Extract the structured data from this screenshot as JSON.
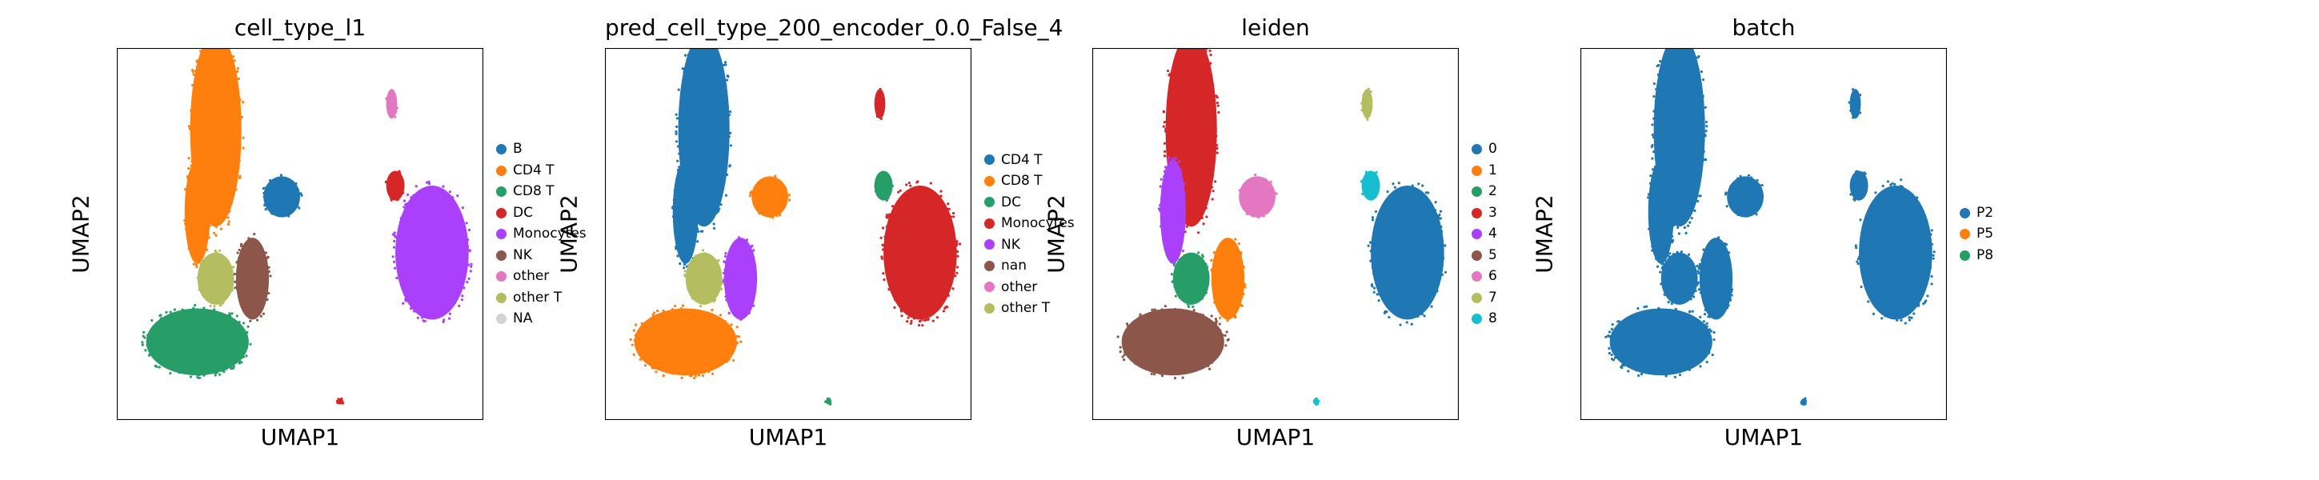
{
  "chart_data": [
    {
      "type": "scatter",
      "title": "cell_type_l1",
      "xlabel": "UMAP1",
      "ylabel": "UMAP2",
      "legend": [
        {
          "label": "B",
          "color": "#1f77b4"
        },
        {
          "label": "CD4 T",
          "color": "#ff7f0e"
        },
        {
          "label": "CD8 T",
          "color": "#279e68"
        },
        {
          "label": "DC",
          "color": "#d62728"
        },
        {
          "label": "Monocytes",
          "color": "#aa40fc"
        },
        {
          "label": "NK",
          "color": "#8c564b"
        },
        {
          "label": "other",
          "color": "#e377c2"
        },
        {
          "label": "other T",
          "color": "#b5bd61"
        },
        {
          "label": "NA",
          "color": "#d3d3d3"
        }
      ],
      "clusters": [
        {
          "name": "upper-stem",
          "category": "CD4 T",
          "x": 0.27,
          "y": 0.22,
          "w": 0.07,
          "h": 0.26
        },
        {
          "name": "mid-stem",
          "category": "CD4 T",
          "x": 0.22,
          "y": 0.44,
          "w": 0.035,
          "h": 0.14
        },
        {
          "name": "junction",
          "category": "other T",
          "x": 0.27,
          "y": 0.62,
          "w": 0.05,
          "h": 0.07
        },
        {
          "name": "lower-left",
          "category": "CD8 T",
          "x": 0.22,
          "y": 0.79,
          "w": 0.14,
          "h": 0.09
        },
        {
          "name": "nk-blob",
          "category": "NK",
          "x": 0.37,
          "y": 0.62,
          "w": 0.045,
          "h": 0.11
        },
        {
          "name": "b-island",
          "category": "B",
          "x": 0.45,
          "y": 0.4,
          "w": 0.05,
          "h": 0.055
        },
        {
          "name": "top-right",
          "category": "other",
          "x": 0.75,
          "y": 0.15,
          "w": 0.015,
          "h": 0.04
        },
        {
          "name": "dc-tip",
          "category": "DC",
          "x": 0.76,
          "y": 0.37,
          "w": 0.025,
          "h": 0.04
        },
        {
          "name": "mono-blob",
          "category": "Monocytes",
          "x": 0.86,
          "y": 0.55,
          "w": 0.1,
          "h": 0.18
        },
        {
          "name": "dc-speck",
          "category": "DC",
          "x": 0.61,
          "y": 0.95,
          "w": 0.008,
          "h": 0.008
        }
      ]
    },
    {
      "type": "scatter",
      "title": "pred_cell_type_200_encoder_0.0_False_4",
      "xlabel": "UMAP1",
      "ylabel": "UMAP2",
      "legend": [
        {
          "label": "CD4 T",
          "color": "#1f77b4"
        },
        {
          "label": "CD8 T",
          "color": "#ff7f0e"
        },
        {
          "label": "DC",
          "color": "#279e68"
        },
        {
          "label": "Monocytes",
          "color": "#d62728"
        },
        {
          "label": "NK",
          "color": "#aa40fc"
        },
        {
          "label": "nan",
          "color": "#8c564b"
        },
        {
          "label": "other",
          "color": "#e377c2"
        },
        {
          "label": "other T",
          "color": "#b5bd61"
        }
      ],
      "clusters": [
        {
          "name": "upper-stem",
          "category": "CD4 T",
          "x": 0.27,
          "y": 0.22,
          "w": 0.07,
          "h": 0.26
        },
        {
          "name": "mid-stem",
          "category": "CD4 T",
          "x": 0.22,
          "y": 0.44,
          "w": 0.035,
          "h": 0.14
        },
        {
          "name": "junction",
          "category": "other T",
          "x": 0.27,
          "y": 0.62,
          "w": 0.05,
          "h": 0.07
        },
        {
          "name": "lower-left",
          "category": "CD8 T",
          "x": 0.22,
          "y": 0.79,
          "w": 0.14,
          "h": 0.09
        },
        {
          "name": "nk-blob",
          "category": "NK",
          "x": 0.37,
          "y": 0.62,
          "w": 0.045,
          "h": 0.11
        },
        {
          "name": "b-island",
          "category": "CD8 T",
          "x": 0.45,
          "y": 0.4,
          "w": 0.05,
          "h": 0.055
        },
        {
          "name": "top-right",
          "category": "Monocytes",
          "x": 0.75,
          "y": 0.15,
          "w": 0.015,
          "h": 0.04
        },
        {
          "name": "dc-tip",
          "category": "DC",
          "x": 0.76,
          "y": 0.37,
          "w": 0.025,
          "h": 0.04
        },
        {
          "name": "mono-blob",
          "category": "Monocytes",
          "x": 0.86,
          "y": 0.55,
          "w": 0.1,
          "h": 0.18
        },
        {
          "name": "dc-speck",
          "category": "DC",
          "x": 0.61,
          "y": 0.95,
          "w": 0.008,
          "h": 0.008
        }
      ]
    },
    {
      "type": "scatter",
      "title": "leiden",
      "xlabel": "UMAP1",
      "ylabel": "UMAP2",
      "legend": [
        {
          "label": "0",
          "color": "#1f77b4"
        },
        {
          "label": "1",
          "color": "#ff7f0e"
        },
        {
          "label": "2",
          "color": "#279e68"
        },
        {
          "label": "3",
          "color": "#d62728"
        },
        {
          "label": "4",
          "color": "#aa40fc"
        },
        {
          "label": "5",
          "color": "#8c564b"
        },
        {
          "label": "6",
          "color": "#e377c2"
        },
        {
          "label": "7",
          "color": "#b5bd61"
        },
        {
          "label": "8",
          "color": "#17becf"
        }
      ],
      "clusters": [
        {
          "name": "upper-stem",
          "category": "3",
          "x": 0.27,
          "y": 0.22,
          "w": 0.07,
          "h": 0.26
        },
        {
          "name": "mid-stem",
          "category": "4",
          "x": 0.22,
          "y": 0.44,
          "w": 0.035,
          "h": 0.14
        },
        {
          "name": "junction",
          "category": "2",
          "x": 0.27,
          "y": 0.62,
          "w": 0.05,
          "h": 0.07
        },
        {
          "name": "lower-left",
          "category": "5",
          "x": 0.22,
          "y": 0.79,
          "w": 0.14,
          "h": 0.09
        },
        {
          "name": "nk-blob",
          "category": "1",
          "x": 0.37,
          "y": 0.62,
          "w": 0.045,
          "h": 0.11
        },
        {
          "name": "b-island",
          "category": "6",
          "x": 0.45,
          "y": 0.4,
          "w": 0.05,
          "h": 0.055
        },
        {
          "name": "top-right",
          "category": "7",
          "x": 0.75,
          "y": 0.15,
          "w": 0.015,
          "h": 0.04
        },
        {
          "name": "dc-tip",
          "category": "8",
          "x": 0.76,
          "y": 0.37,
          "w": 0.025,
          "h": 0.04
        },
        {
          "name": "mono-blob",
          "category": "0",
          "x": 0.86,
          "y": 0.55,
          "w": 0.1,
          "h": 0.18
        },
        {
          "name": "dc-speck",
          "category": "8",
          "x": 0.61,
          "y": 0.95,
          "w": 0.008,
          "h": 0.008
        }
      ]
    },
    {
      "type": "scatter",
      "title": "batch",
      "xlabel": "UMAP1",
      "ylabel": "UMAP2",
      "legend": [
        {
          "label": "P2",
          "color": "#1f77b4"
        },
        {
          "label": "P5",
          "color": "#ff7f0e"
        },
        {
          "label": "P8",
          "color": "#279e68"
        }
      ],
      "clusters": [
        {
          "name": "upper-stem",
          "category": "P2",
          "x": 0.27,
          "y": 0.22,
          "w": 0.07,
          "h": 0.26
        },
        {
          "name": "mid-stem",
          "category": "P2",
          "x": 0.22,
          "y": 0.44,
          "w": 0.035,
          "h": 0.14
        },
        {
          "name": "junction",
          "category": "P2",
          "x": 0.27,
          "y": 0.62,
          "w": 0.05,
          "h": 0.07
        },
        {
          "name": "lower-left",
          "category": "P2",
          "x": 0.22,
          "y": 0.79,
          "w": 0.14,
          "h": 0.09
        },
        {
          "name": "nk-blob",
          "category": "P2",
          "x": 0.37,
          "y": 0.62,
          "w": 0.045,
          "h": 0.11
        },
        {
          "name": "b-island",
          "category": "P2",
          "x": 0.45,
          "y": 0.4,
          "w": 0.05,
          "h": 0.055
        },
        {
          "name": "top-right",
          "category": "P2",
          "x": 0.75,
          "y": 0.15,
          "w": 0.015,
          "h": 0.04
        },
        {
          "name": "dc-tip",
          "category": "P2",
          "x": 0.76,
          "y": 0.37,
          "w": 0.025,
          "h": 0.04
        },
        {
          "name": "mono-blob",
          "category": "P2",
          "x": 0.86,
          "y": 0.55,
          "w": 0.1,
          "h": 0.18
        },
        {
          "name": "dc-speck",
          "category": "P2",
          "x": 0.61,
          "y": 0.95,
          "w": 0.008,
          "h": 0.008
        }
      ]
    }
  ]
}
